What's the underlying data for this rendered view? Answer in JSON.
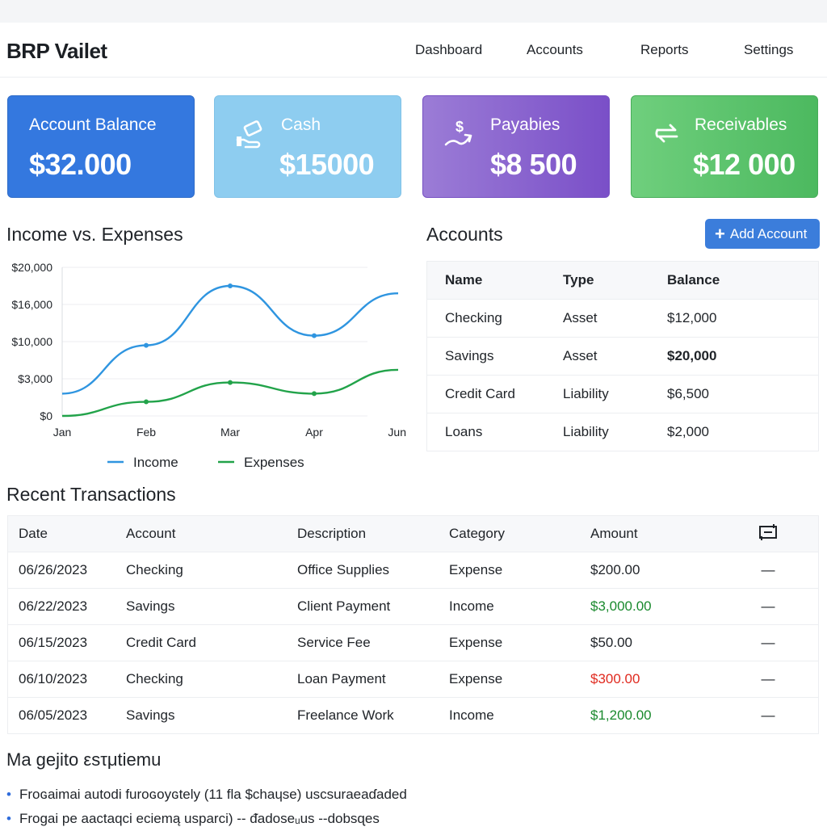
{
  "app": {
    "title": "BRP Vailet"
  },
  "nav": [
    {
      "label": "Dashboard"
    },
    {
      "label": "Accounts"
    },
    {
      "label": "Reports"
    },
    {
      "label": "Settings"
    }
  ],
  "cards": [
    {
      "label": "Account Balance",
      "value": "$32.000",
      "color": "#3478df"
    },
    {
      "label": "Cash",
      "value": "$15000",
      "icon": "cash-hand-icon",
      "color": "#8ecdf0"
    },
    {
      "label": "Payabies",
      "value": "$8 500",
      "icon": "dollar-arrow-icon",
      "color": "#8a64cf"
    },
    {
      "label": "Receivables",
      "value": "$12 000",
      "icon": "exchange-arrows-icon",
      "color": "#5cc46c"
    }
  ],
  "chart_section": {
    "title": "Income vs. Expenses"
  },
  "chart_data": {
    "type": "line",
    "categories": [
      "Jan",
      "Feb",
      "Mar",
      "Apr",
      "Jun"
    ],
    "y_ticks": [
      "$20,000",
      "$16,000",
      "$10,000",
      "$3,000",
      "$0"
    ],
    "series": [
      {
        "name": "Income",
        "color": "#2f95e0",
        "values": [
          3000,
          9500,
          17500,
          10800,
          16500
        ]
      },
      {
        "name": "Expenses",
        "color": "#22a34a",
        "values": [
          0,
          1900,
          4500,
          3000,
          6200
        ]
      }
    ],
    "ylim": [
      0,
      20000
    ],
    "grid": true,
    "legend": "bottom"
  },
  "accounts": {
    "title": "Accounts",
    "add_label": "Add Account",
    "headers": {
      "name": "Name",
      "type": "Type",
      "balance": "Balance"
    },
    "rows": [
      {
        "name": "Checking",
        "type": "Asset",
        "balance": "$12,000"
      },
      {
        "name": "Savings",
        "type": "Asset",
        "balance": "$20,000"
      },
      {
        "name": "Credit Card",
        "type": "Liability",
        "balance": "$6,500"
      },
      {
        "name": "Loans",
        "type": "Liability",
        "balance": "$2,000"
      }
    ]
  },
  "transactions": {
    "title": "Recent Transactions",
    "headers": {
      "date": "Date",
      "account": "Account",
      "description": "Description",
      "category": "Category",
      "amount": "Amount"
    },
    "rows": [
      {
        "date": "06/26/2023",
        "account": "Checking",
        "description": "Office Supplies",
        "category": "Expense",
        "amount": "$200.00",
        "amount_color": "#1f2328",
        "action": "—"
      },
      {
        "date": "06/22/2023",
        "account": "Savings",
        "description": "Client Payment",
        "category": "Income",
        "amount": "$3,000.00",
        "amount_color": "#1a8a2e",
        "action": "—"
      },
      {
        "date": "06/15/2023",
        "account": "Credit Card",
        "description": "Service Fee",
        "category": "Expense",
        "amount": "$50.00",
        "amount_color": "#1f2328",
        "action": "—"
      },
      {
        "date": "06/10/2023",
        "account": "Checking",
        "description": "Loan Payment",
        "category": "Expense",
        "amount": "$300.00",
        "amount_color": "#e02a1f",
        "action": "—"
      },
      {
        "date": "06/05/2023",
        "account": "Savings",
        "description": "Freelance Work",
        "category": "Income",
        "amount": "$1,200.00",
        "amount_color": "#1a8a2e",
        "action": "—"
      }
    ]
  },
  "notes": {
    "title": "Ma gejito εsτμtiemu",
    "items": [
      "Froɢaimai autodi furoɢoyɢtely (11 fla $chaɥse) uscsuraeaɗaded",
      "Froɡai pe aactaqci eciemą usparci) -- ᵭadoseᵤus --dobsɋes"
    ]
  }
}
